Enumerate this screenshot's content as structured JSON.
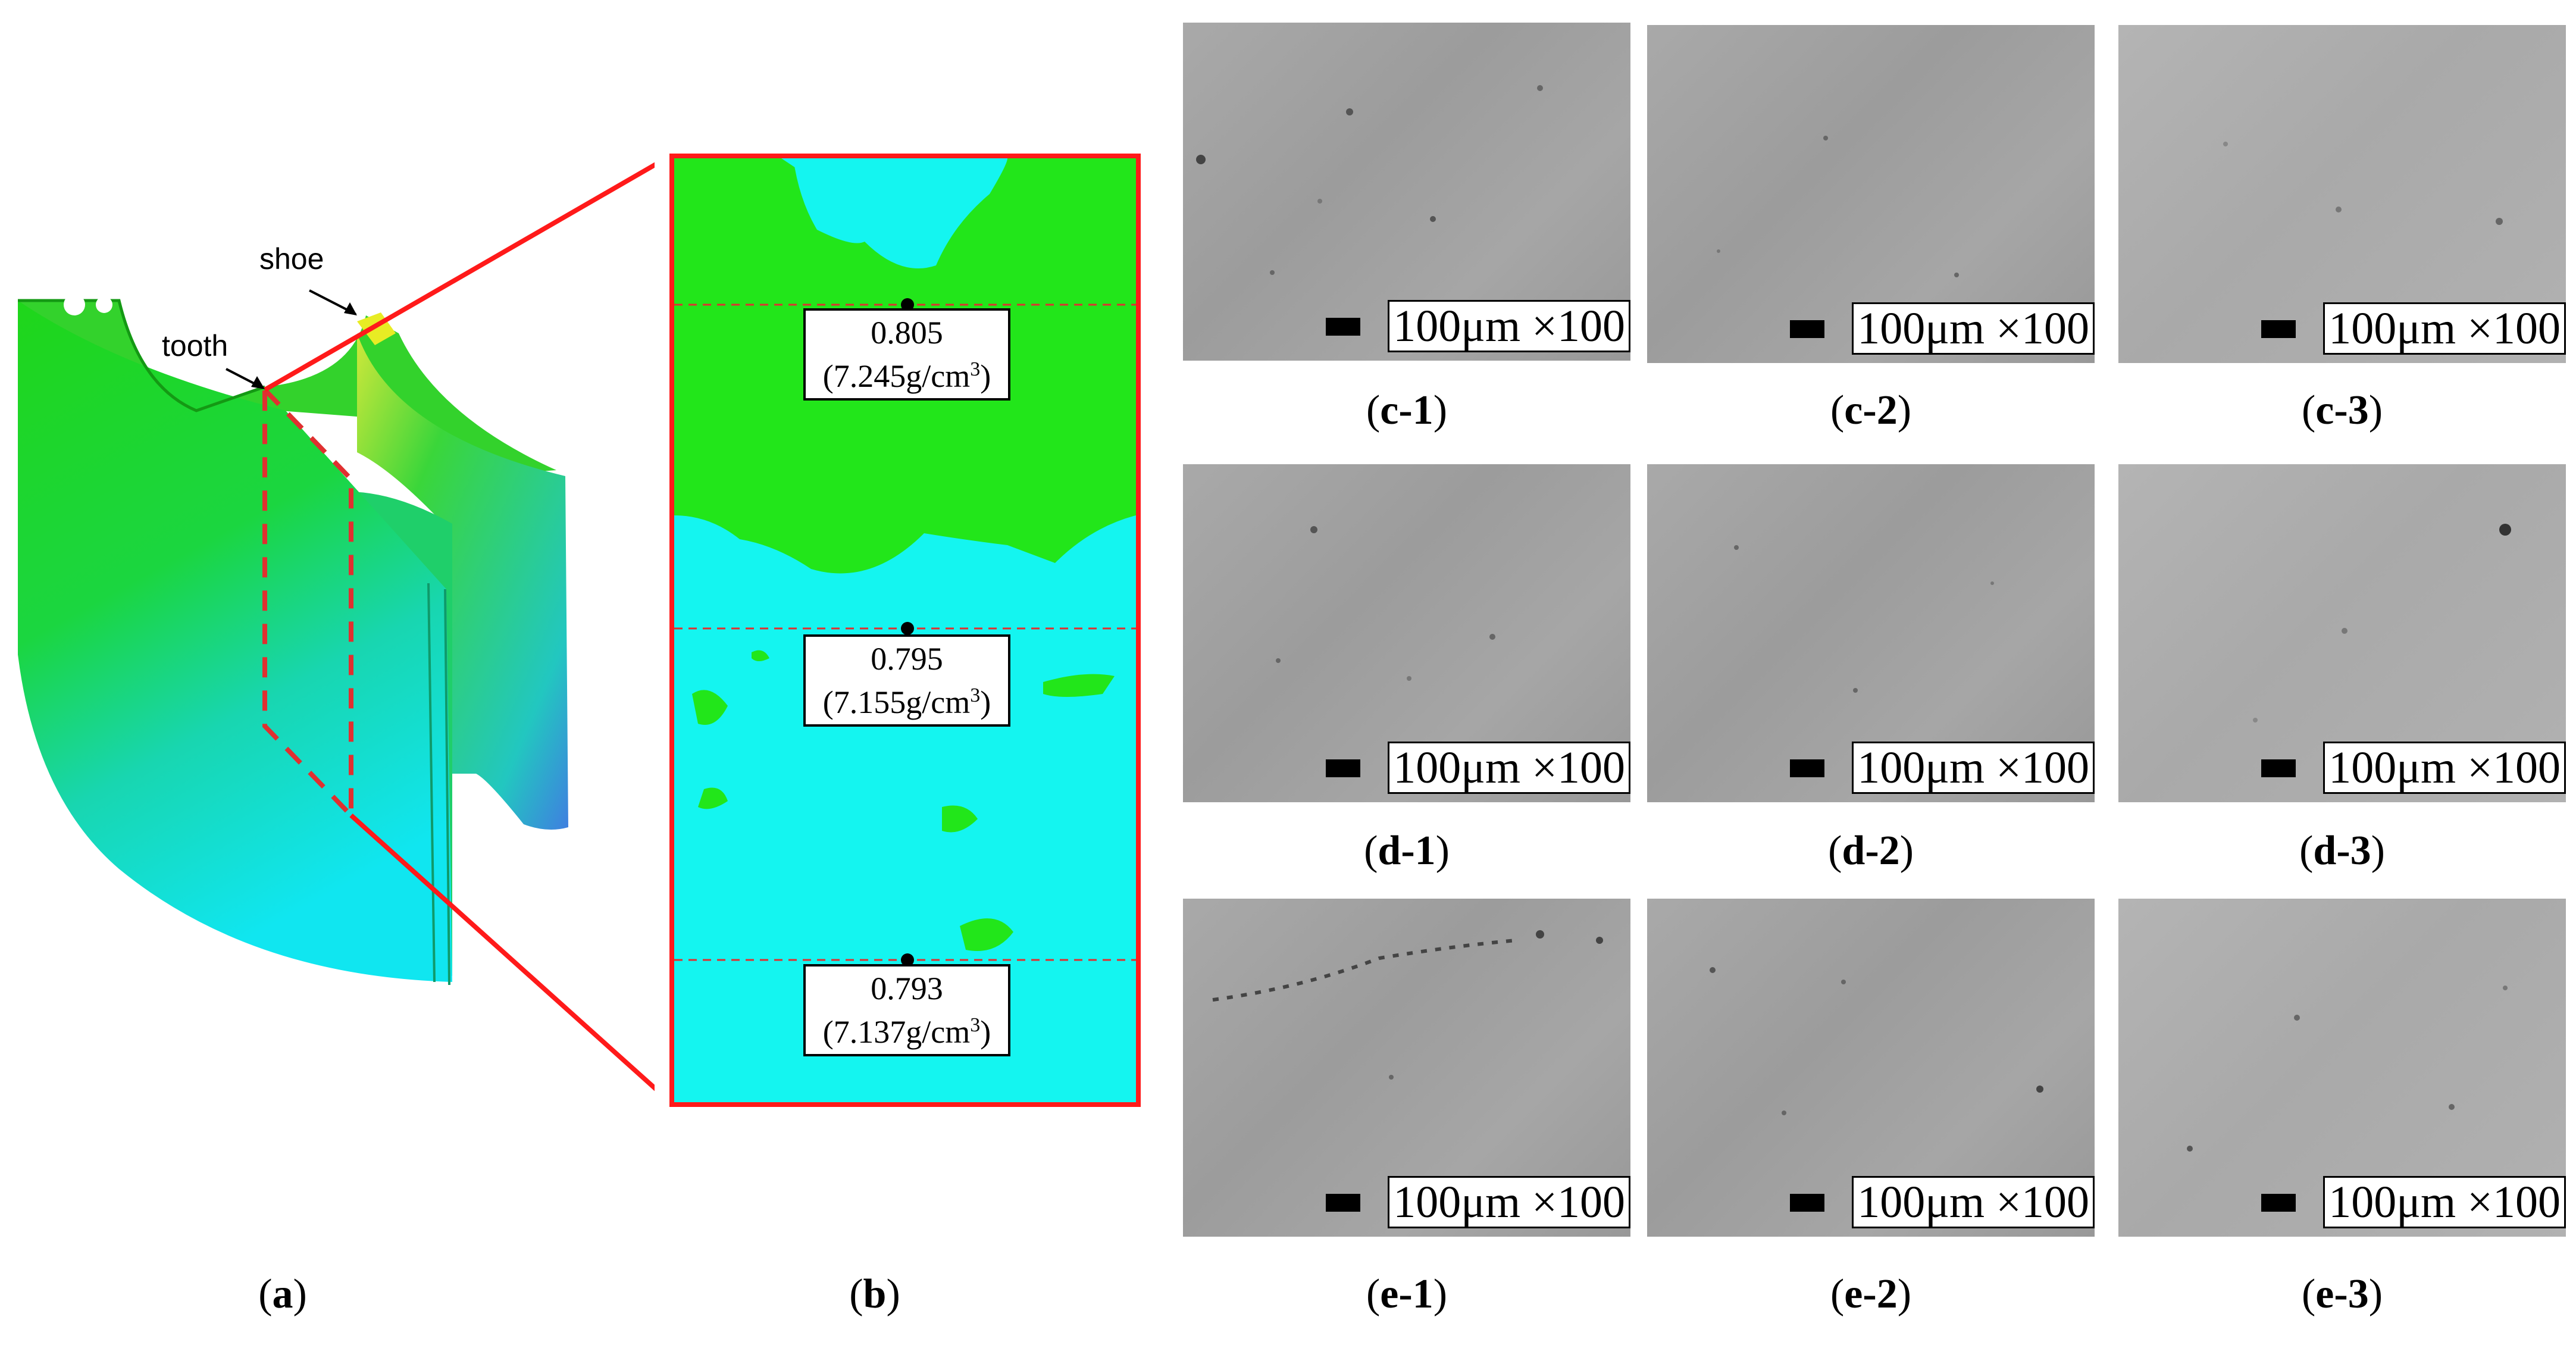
{
  "panel_a": {
    "caption_letter": "a",
    "labels": {
      "shoe": "shoe",
      "tooth": "tooth"
    }
  },
  "panel_b": {
    "caption_letter": "b",
    "sections": [
      {
        "ratio": "0.805",
        "density": "(7.245g/cm",
        "sup": "3",
        "close": ")"
      },
      {
        "ratio": "0.795",
        "density": "(7.155g/cm",
        "sup": "3",
        "close": ")"
      },
      {
        "ratio": "0.793",
        "density": "(7.137g/cm",
        "sup": "3",
        "close": ")"
      }
    ]
  },
  "micrographs": {
    "scale_label": "100μm ×100",
    "rows": [
      {
        "letter": "c",
        "captions": [
          "1",
          "2",
          "3"
        ]
      },
      {
        "letter": "d",
        "captions": [
          "1",
          "2",
          "3"
        ]
      },
      {
        "letter": "e",
        "captions": [
          "1",
          "2",
          "3"
        ]
      }
    ]
  },
  "colors": {
    "green": "#22e61a",
    "cyan": "#14f5f0",
    "red": "#ff1a1a",
    "dashed_red": "#e03030"
  }
}
